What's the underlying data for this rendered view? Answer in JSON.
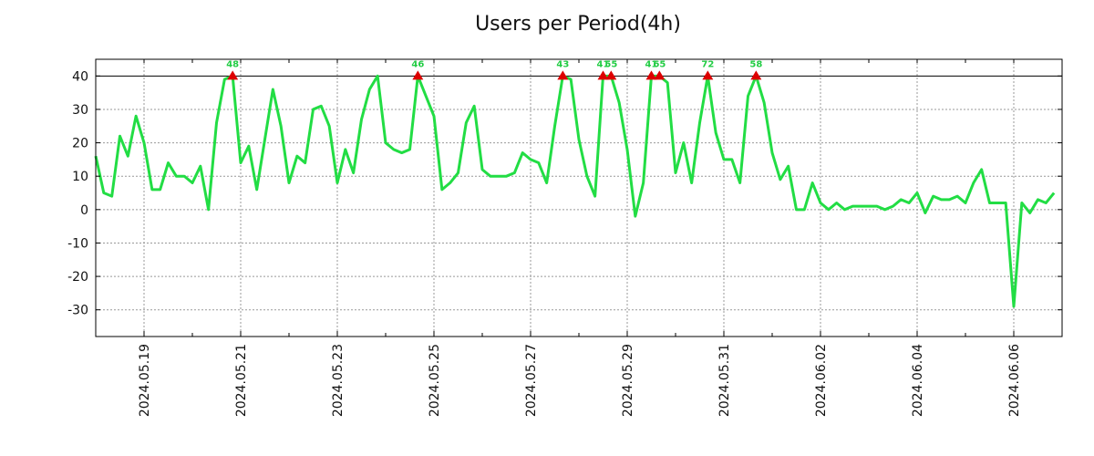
{
  "chart_data": {
    "type": "line",
    "title": "Users per Period(4h)",
    "xlabel": "",
    "ylabel": "",
    "ylim": [
      -38,
      45
    ],
    "xlim": [
      0,
      120
    ],
    "y_ticks": [
      -30,
      -20,
      -10,
      0,
      10,
      20,
      30,
      40
    ],
    "y_tick_labels": [
      "-30",
      "-20",
      "-10",
      "0",
      "10",
      "20",
      "30",
      "40"
    ],
    "x_ticks": [
      6,
      18,
      30,
      42,
      54,
      66,
      78,
      90,
      102,
      114
    ],
    "x_tick_labels": [
      "2024.05.19",
      "2024.05.21",
      "2024.05.23",
      "2024.05.25",
      "2024.05.27",
      "2024.05.29",
      "2024.05.31",
      "2024.06.02",
      "2024.06.04",
      "2024.06.06"
    ],
    "grid": true,
    "cap_line": 40,
    "series": [
      {
        "name": "users",
        "color": "#22dd44",
        "values": [
          16,
          5,
          4,
          22,
          16,
          28,
          20,
          6,
          6,
          14,
          10,
          10,
          8,
          13,
          0,
          26,
          39,
          40,
          14,
          19,
          6,
          21,
          36,
          25,
          8,
          16,
          14,
          30,
          31,
          25,
          8,
          18,
          11,
          27,
          36,
          40,
          20,
          18,
          17,
          18,
          40,
          34,
          28,
          6,
          8,
          11,
          26,
          31,
          12,
          10,
          10,
          10,
          11,
          17,
          15,
          14,
          8,
          25,
          40,
          39,
          21,
          10,
          4,
          40,
          40,
          32,
          18,
          -2,
          8,
          40,
          40,
          38,
          11,
          20,
          8,
          26,
          40,
          23,
          15,
          15,
          8,
          34,
          40,
          32,
          17,
          9,
          13,
          0,
          0,
          8,
          2,
          0,
          2,
          0,
          1,
          1,
          1,
          1,
          0,
          1,
          3,
          2,
          5,
          -1,
          4,
          3,
          3,
          4,
          2,
          8,
          12,
          2,
          2,
          2,
          -29,
          2,
          -1,
          3,
          2,
          5
        ]
      }
    ],
    "markers": [
      {
        "x": 17,
        "label": "48"
      },
      {
        "x": 40,
        "label": "46"
      },
      {
        "x": 58,
        "label": "43"
      },
      {
        "x": 63,
        "label": "41"
      },
      {
        "x": 64,
        "label": "55"
      },
      {
        "x": 69,
        "label": "41"
      },
      {
        "x": 70,
        "label": "65"
      },
      {
        "x": 76,
        "label": "72"
      },
      {
        "x": 82,
        "label": "58"
      }
    ],
    "marker_color": "#dd0000",
    "marker_label_color": "#22cc44"
  }
}
